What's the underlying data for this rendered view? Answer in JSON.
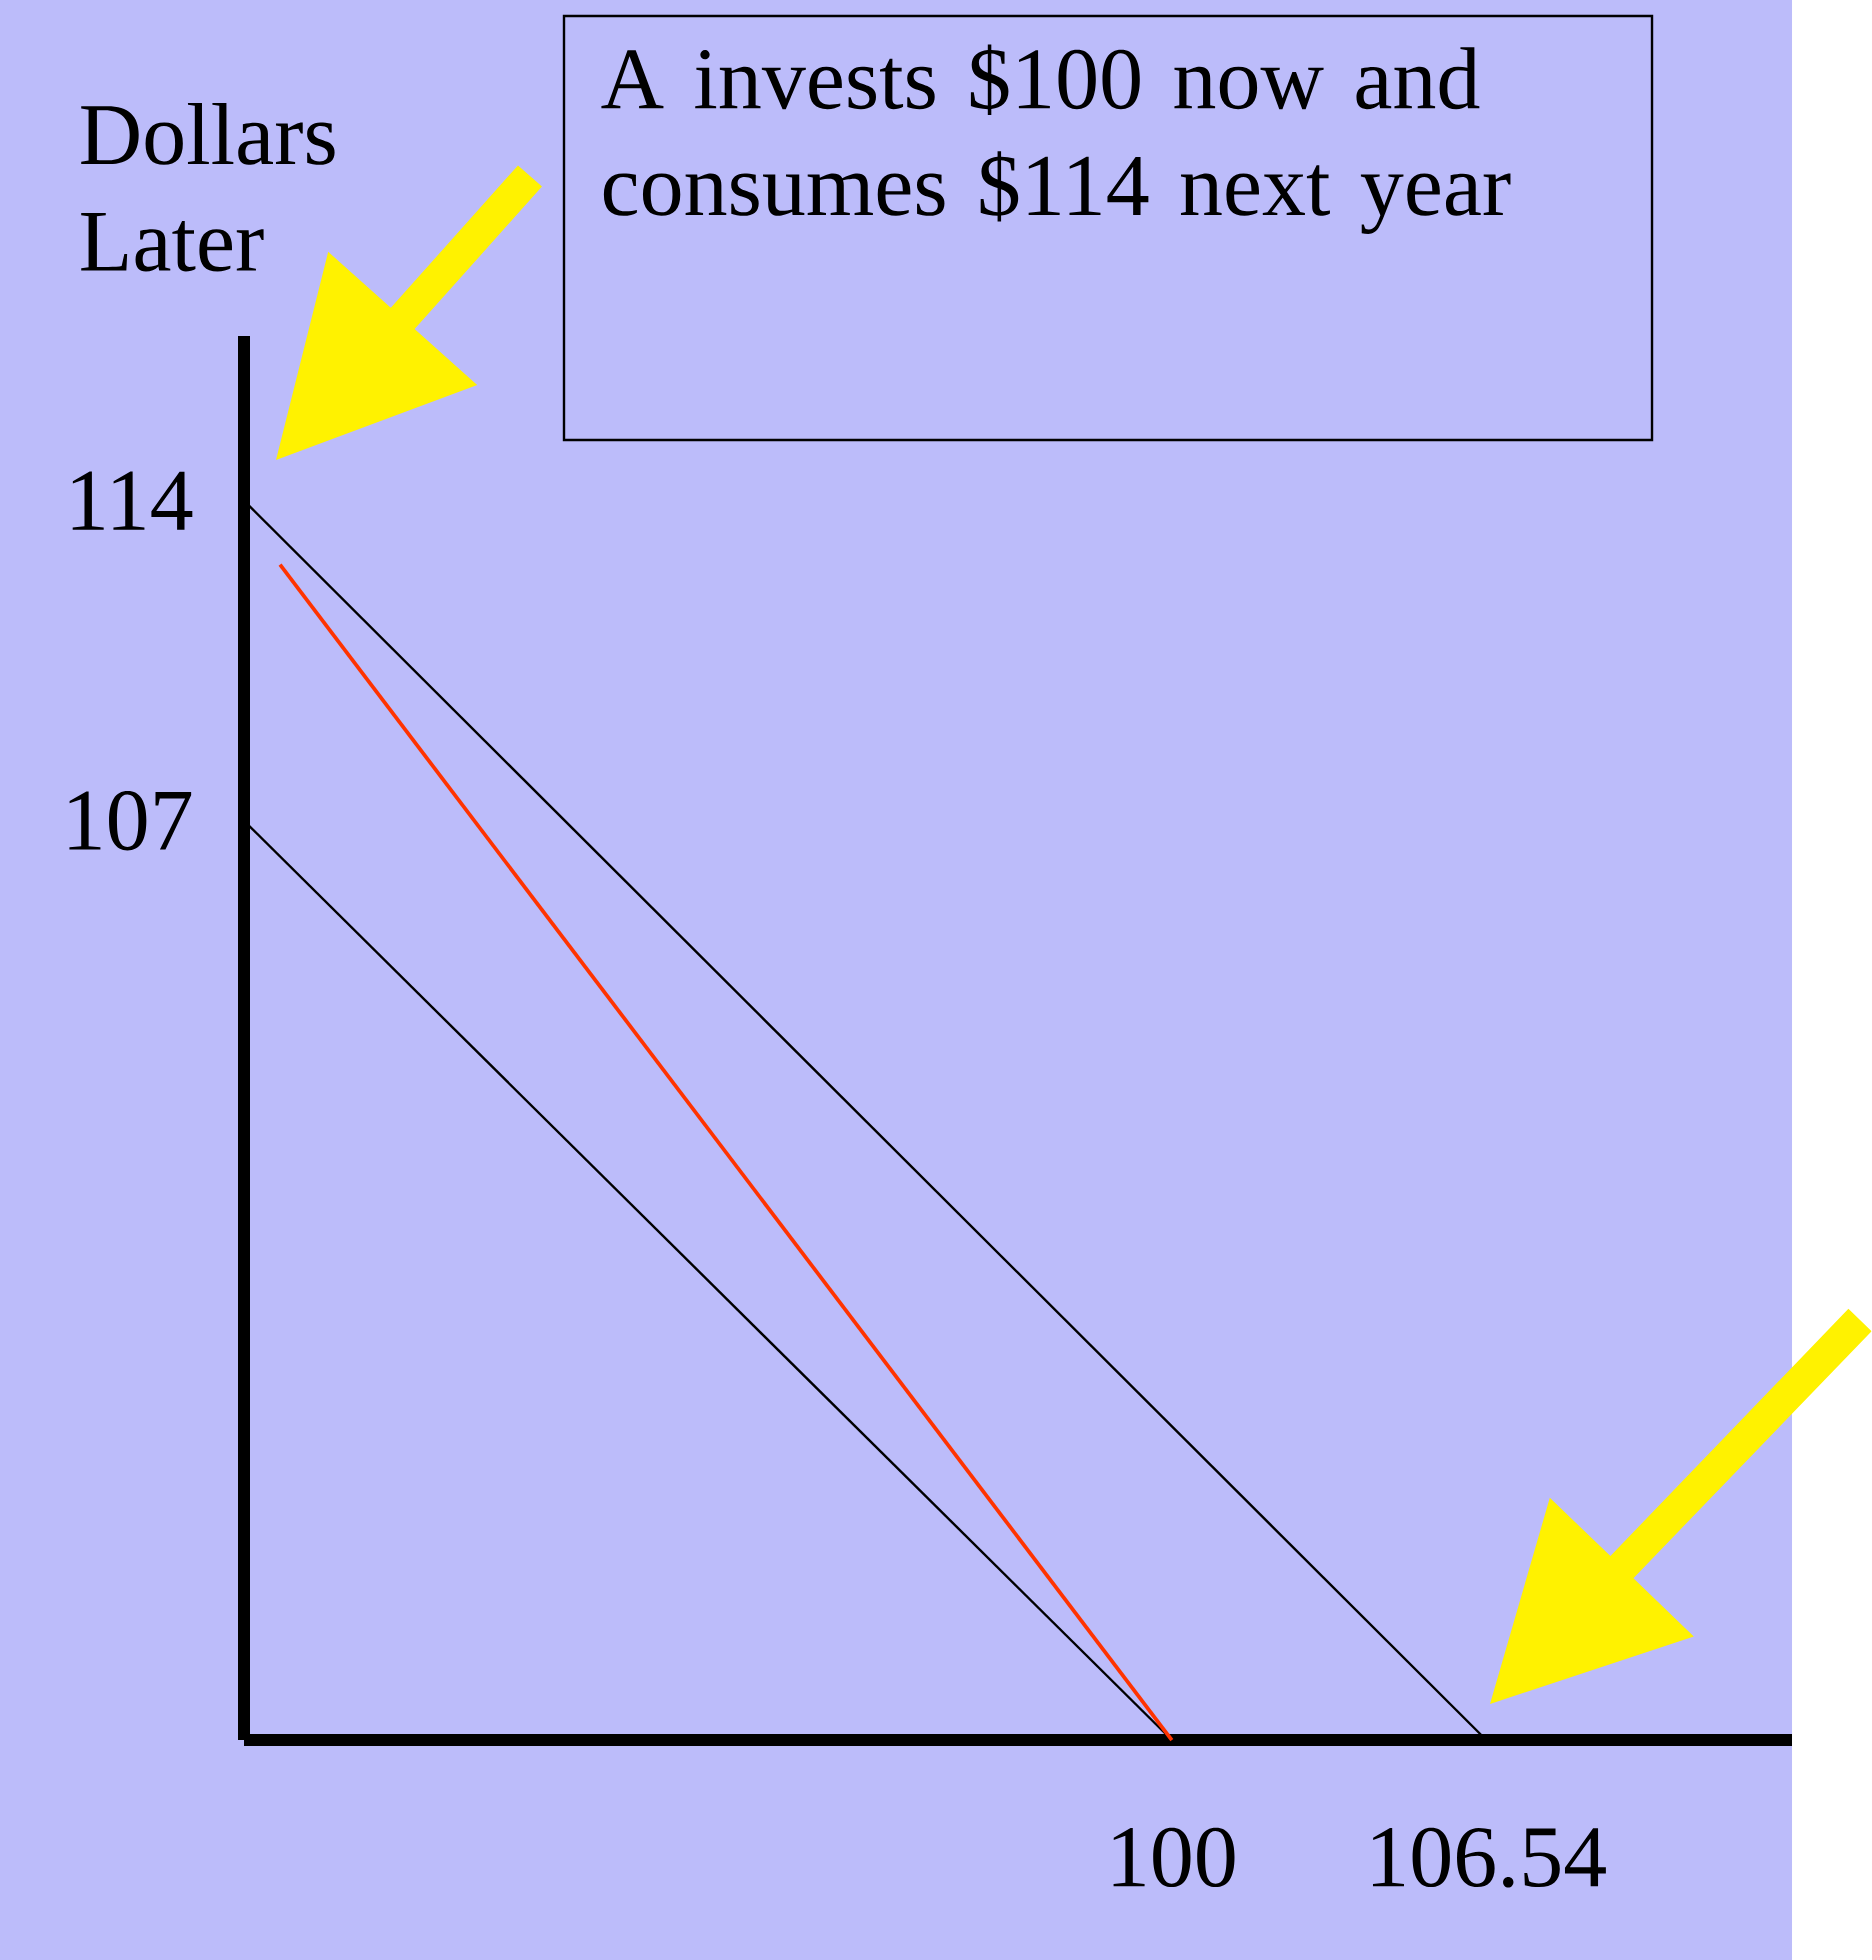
{
  "chart_data": {
    "type": "line",
    "ylabel": "Dollars Later",
    "annotations": [
      "A invests $100 now and consumes $114 next year"
    ],
    "xlim": [
      80.7,
      112.9
    ],
    "ylim": [
      86.9,
      117.6
    ],
    "xticks": [
      100,
      106.54
    ],
    "yticks": [
      107,
      114
    ],
    "grid": false,
    "marker": "none",
    "line_style": "solid",
    "series": [
      {
        "color": "#000000",
        "x": [
          80.7,
          100
        ],
        "values": [
          107,
          86.9
        ]
      },
      {
        "color": "#000000",
        "x": [
          80.7,
          106.54
        ],
        "values": [
          114,
          86.9
        ]
      },
      {
        "color": "#ff3300",
        "x": [
          100,
          81.45
        ],
        "values": [
          86.9,
          112.6
        ]
      }
    ]
  }
}
